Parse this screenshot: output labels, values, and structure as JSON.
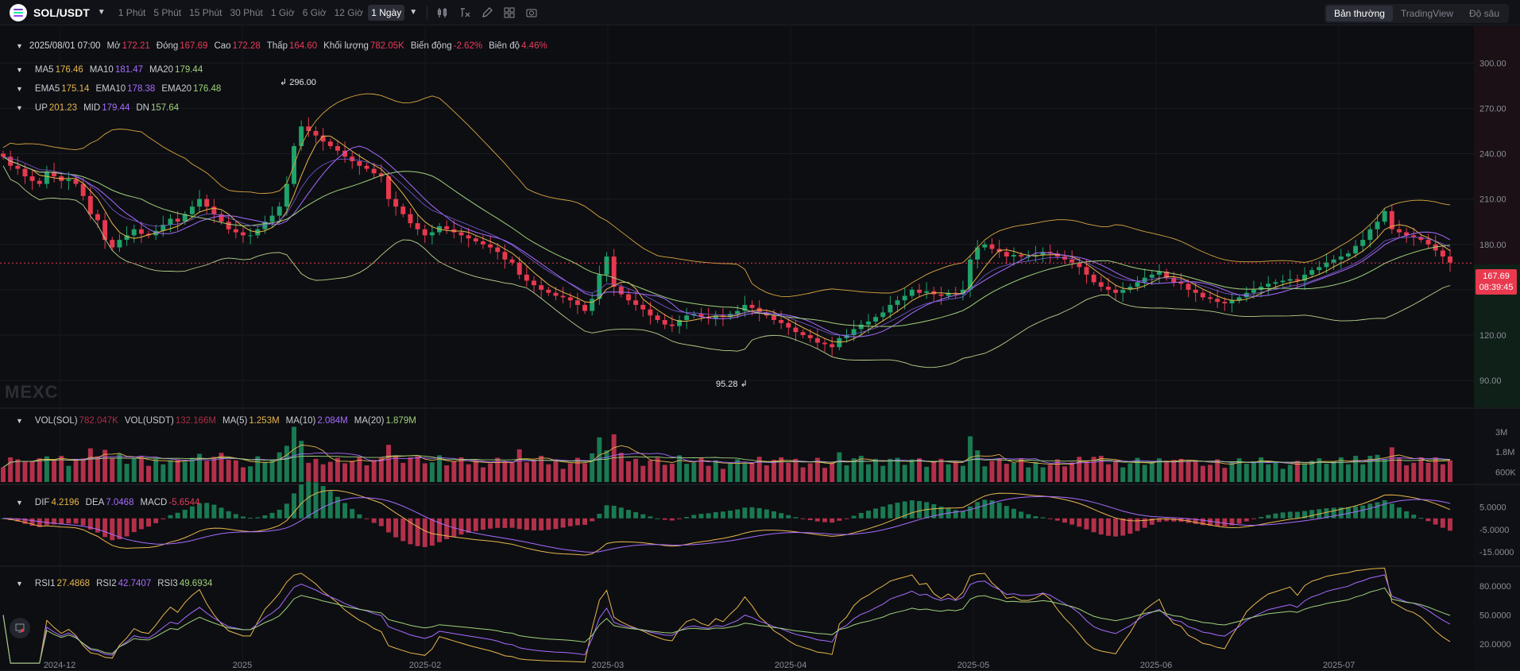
{
  "toolbar": {
    "symbol": "SOL/USDT",
    "intervals": [
      "1 Phút",
      "5 Phút",
      "15 Phút",
      "30 Phút",
      "1 Giờ",
      "6 Giờ",
      "12 Giờ",
      "1 Ngày"
    ],
    "active_interval": "1 Ngày",
    "tools": [
      "indicator-icon",
      "formula-icon",
      "draw-icon",
      "layout-icon",
      "camera-icon"
    ],
    "views": [
      "Bản thường",
      "TradingView",
      "Độ sâu"
    ],
    "active_view": "Bản thường"
  },
  "ohlc": {
    "date": "2025/08/01 07:00",
    "open_label": "Mở",
    "open": "172.21",
    "close_label": "Đóng",
    "close": "167.69",
    "high_label": "Cao",
    "high": "172.28",
    "low_label": "Thấp",
    "low": "164.60",
    "volume_label": "Khối lượng",
    "volume": "782.05K",
    "change_label": "Biến động",
    "change": "-2.62%",
    "amplitude_label": "Biên độ",
    "amplitude": "4.46%"
  },
  "ma": {
    "ma5_label": "MA5",
    "ma5": "176.46",
    "ma10_label": "MA10",
    "ma10": "181.47",
    "ma20_label": "MA20",
    "ma20": "179.44"
  },
  "ema": {
    "ema5_label": "EMA5",
    "ema5": "175.14",
    "ema10_label": "EMA10",
    "ema10": "178.38",
    "ema20_label": "EMA20",
    "ema20": "176.48"
  },
  "boll": {
    "up_label": "UP",
    "up": "201.23",
    "mid_label": "MID",
    "mid": "179.44",
    "dn_label": "DN",
    "dn": "157.64"
  },
  "vol": {
    "vol_sol_label": "VOL(SOL)",
    "vol_sol": "782.047K",
    "vol_usdt_label": "VOL(USDT)",
    "vol_usdt": "132.166M",
    "ma5_label": "MA(5)",
    "ma5": "1.253M",
    "ma10_label": "MA(10)",
    "ma10": "2.084M",
    "ma20_label": "MA(20)",
    "ma20": "1.879M"
  },
  "macd": {
    "dif_label": "DIF",
    "dif": "4.2196",
    "dea_label": "DEA",
    "dea": "7.0468",
    "macd_label": "MACD",
    "macd": "-5.6544"
  },
  "rsi": {
    "rsi1_label": "RSI1",
    "rsi1": "27.4868",
    "rsi2_label": "RSI2",
    "rsi2": "42.7407",
    "rsi3_label": "RSI3",
    "rsi3": "49.6934"
  },
  "last_price": "167.69",
  "countdown": "08:39:45",
  "watermark": "MEXC",
  "chart_data": {
    "type": "candlestick",
    "price_axis": [
      "300.00",
      "270.00",
      "240.00",
      "210.00",
      "180.00",
      "150.00",
      "120.00",
      "90.00"
    ],
    "price_range": [
      78,
      318
    ],
    "volume_axis": [
      "3M",
      "1.8M",
      "600K"
    ],
    "macd_axis": [
      "5.0000",
      "-5.0000",
      "-15.0000"
    ],
    "rsi_axis": [
      "80.0000",
      "50.0000",
      "20.0000"
    ],
    "time_axis": [
      "2024-12",
      "2025",
      "2025-02",
      "2025-03",
      "2025-04",
      "2025-05",
      "2025-06",
      "2025-07"
    ],
    "high_marker": "296.00",
    "low_marker": "95.28",
    "closes": [
      238,
      232,
      230,
      225,
      222,
      220,
      228,
      225,
      222,
      223,
      220,
      212,
      200,
      196,
      183,
      178,
      183,
      186,
      190,
      187,
      186,
      189,
      193,
      197,
      195,
      200,
      205,
      210,
      205,
      200,
      195,
      190,
      188,
      186,
      186,
      190,
      195,
      199,
      205,
      220,
      245,
      258,
      255,
      252,
      248,
      245,
      242,
      238,
      235,
      232,
      230,
      227,
      225,
      210,
      205,
      200,
      194,
      190,
      186,
      188,
      192,
      190,
      188,
      186,
      184,
      182,
      180,
      178,
      175,
      170,
      168,
      160,
      156,
      153,
      150,
      148,
      146,
      145,
      143,
      140,
      136,
      144,
      160,
      172,
      152,
      147,
      143,
      140,
      137,
      133,
      130,
      127,
      126,
      130,
      133,
      134,
      132,
      131,
      133,
      132,
      134,
      136,
      140,
      138,
      135,
      133,
      130,
      128,
      125,
      122,
      120,
      118,
      115,
      114,
      112,
      118,
      120,
      124,
      127,
      129,
      132,
      135,
      140,
      143,
      146,
      150,
      148,
      149,
      147,
      146,
      148,
      147,
      150,
      170,
      178,
      180,
      177,
      175,
      172,
      173,
      172,
      172,
      173,
      175,
      174,
      172,
      170,
      168,
      165,
      160,
      155,
      152,
      150,
      148,
      150,
      152,
      155,
      158,
      160,
      162,
      158,
      155,
      154,
      150,
      148,
      145,
      144,
      142,
      141,
      143,
      145,
      148,
      150,
      152,
      154,
      155,
      156,
      157,
      156,
      160,
      163,
      165,
      168,
      170,
      172,
      174,
      179,
      183,
      190,
      195,
      202,
      190,
      188,
      186,
      185,
      183,
      180,
      176,
      172,
      168
    ],
    "opens_start": 240,
    "volume_max": 4000000,
    "macd_range": [
      -20,
      12
    ],
    "rsi_range": [
      10,
      95
    ]
  }
}
